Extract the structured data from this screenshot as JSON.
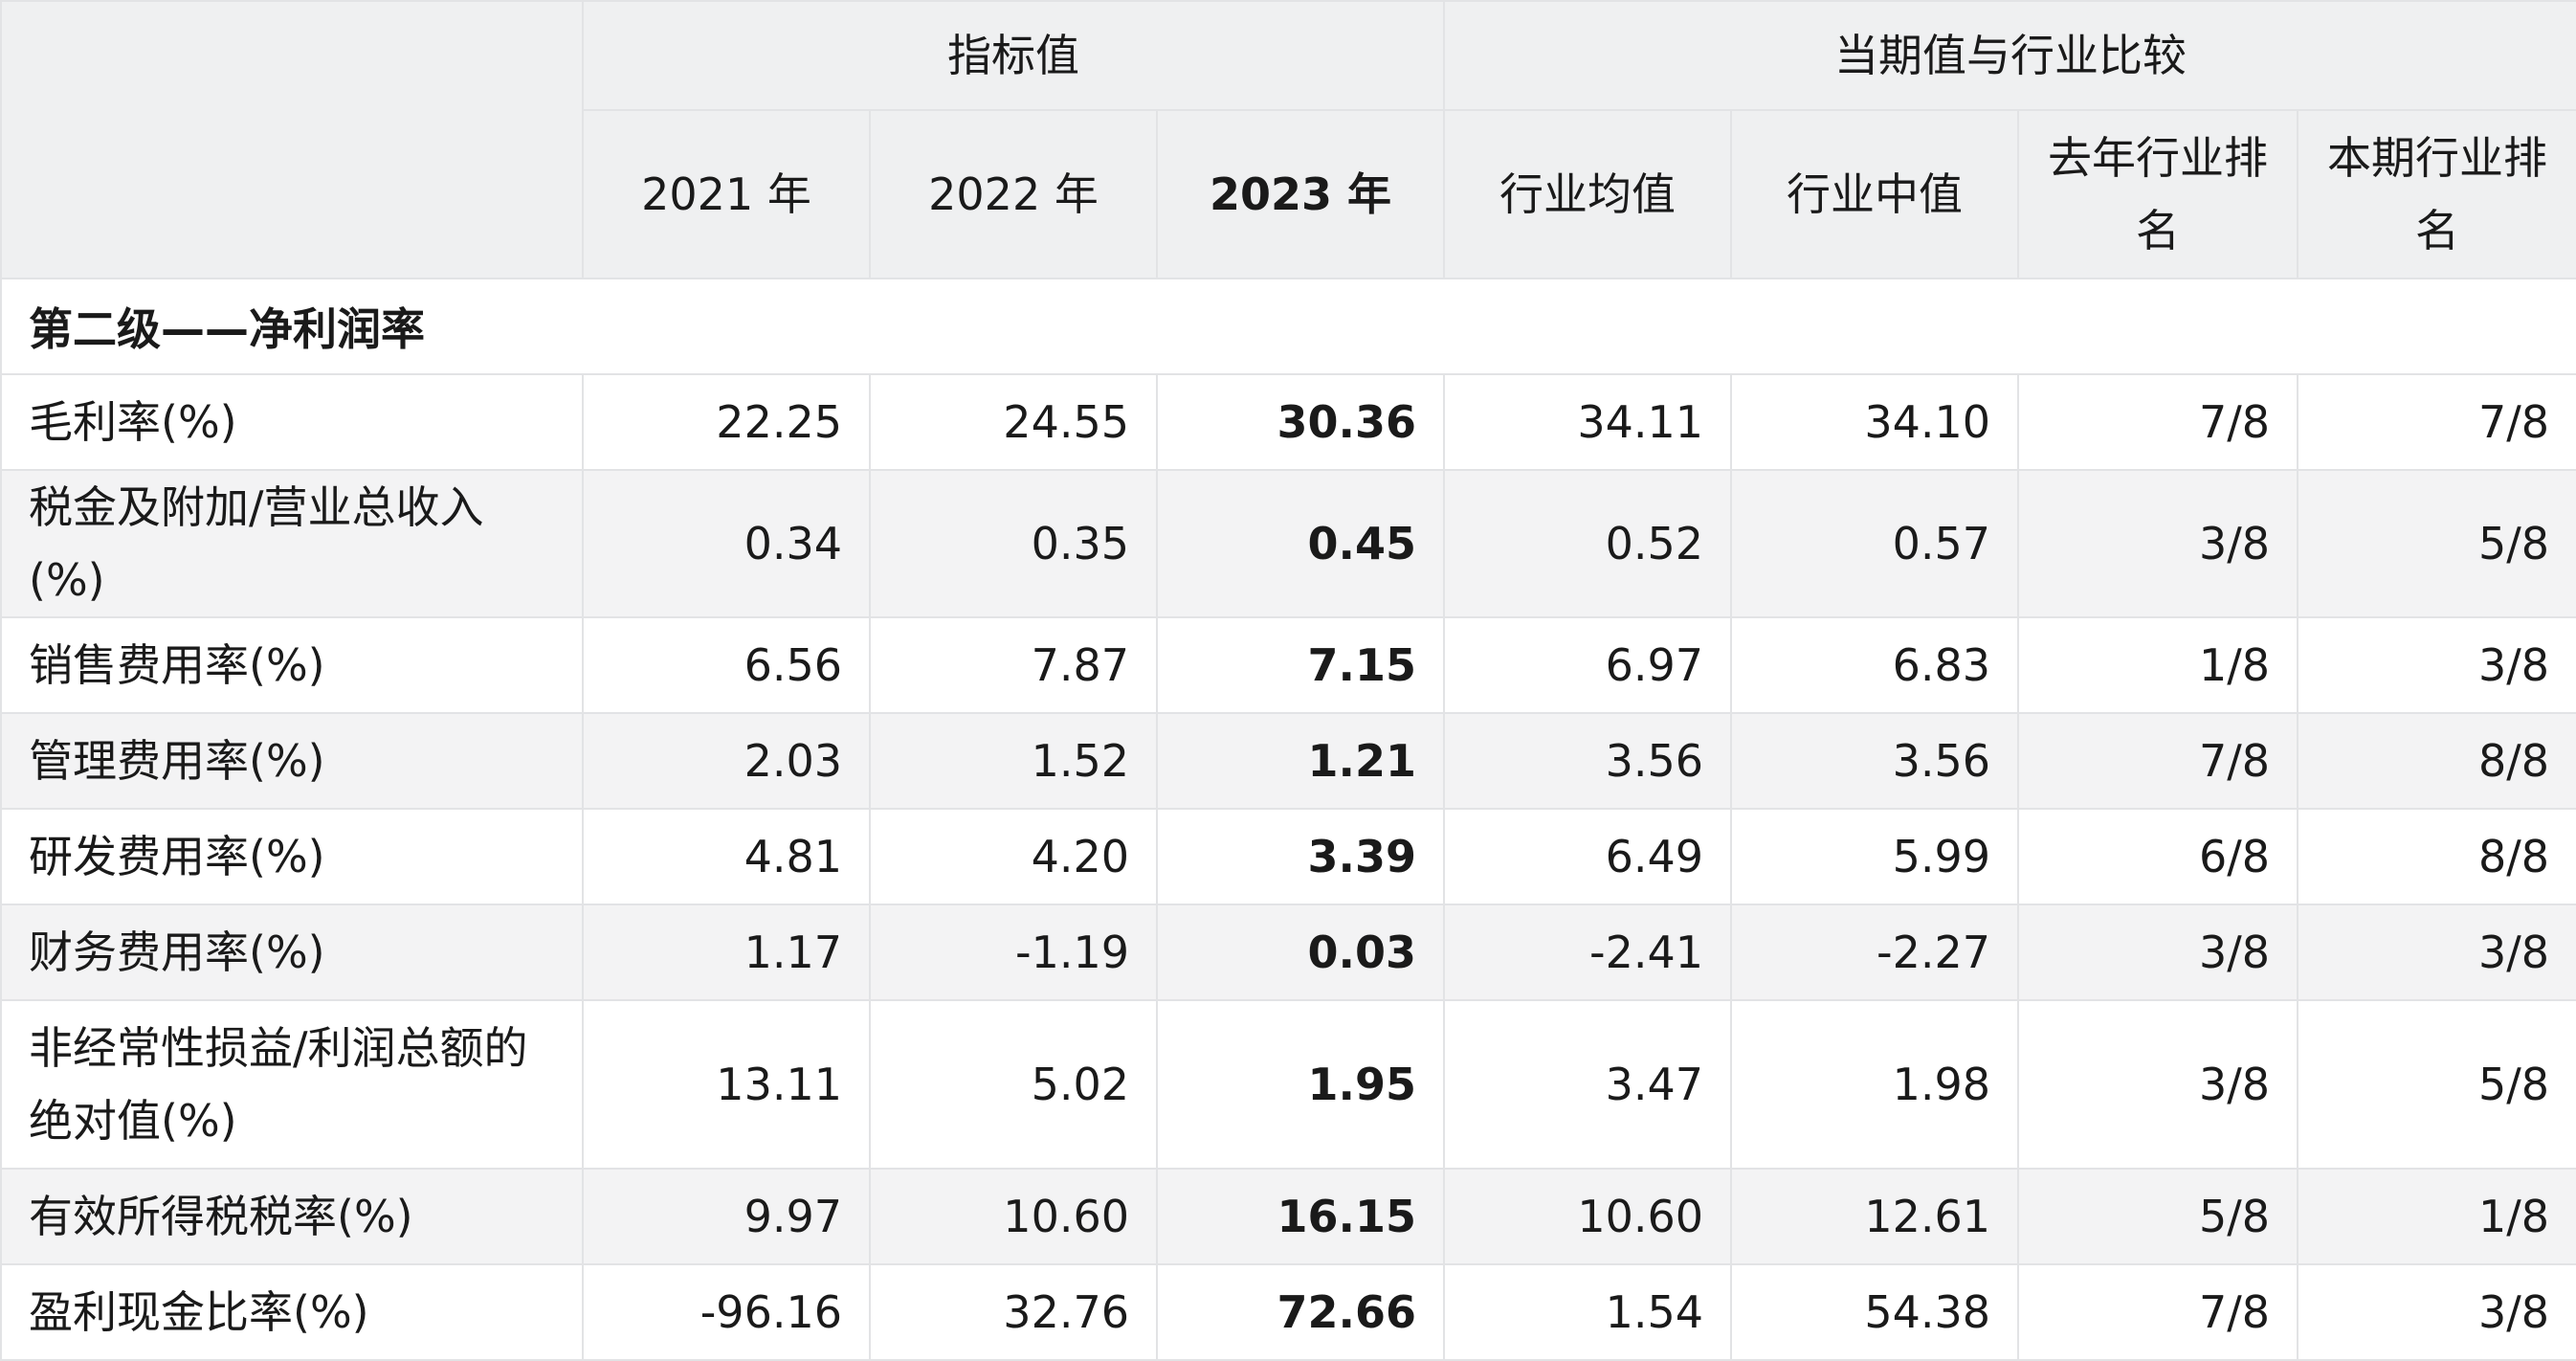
{
  "header": {
    "group_indicator": "指标值",
    "group_compare": "当期值与行业比较",
    "columns": [
      "2021 年",
      "2022 年",
      "2023 年",
      "行业均值",
      "行业中值",
      "去年行业排名",
      "本期行业排名"
    ]
  },
  "section_title": "第二级——净利润率",
  "rows": [
    {
      "label": "毛利率(%)",
      "values": [
        "22.25",
        "24.55",
        "30.36",
        "34.11",
        "34.10",
        "7/8",
        "7/8"
      ]
    },
    {
      "label": "税金及附加/营业总收入(%)",
      "values": [
        "0.34",
        "0.35",
        "0.45",
        "0.52",
        "0.57",
        "3/8",
        "5/8"
      ]
    },
    {
      "label": "销售费用率(%)",
      "values": [
        "6.56",
        "7.87",
        "7.15",
        "6.97",
        "6.83",
        "1/8",
        "3/8"
      ]
    },
    {
      "label": "管理费用率(%)",
      "values": [
        "2.03",
        "1.52",
        "1.21",
        "3.56",
        "3.56",
        "7/8",
        "8/8"
      ]
    },
    {
      "label": "研发费用率(%)",
      "values": [
        "4.81",
        "4.20",
        "3.39",
        "6.49",
        "5.99",
        "6/8",
        "8/8"
      ]
    },
    {
      "label": "财务费用率(%)",
      "values": [
        "1.17",
        "-1.19",
        "0.03",
        "-2.41",
        "-2.27",
        "3/8",
        "3/8"
      ]
    },
    {
      "label": "非经常性损益/利润总额的绝对值(%)",
      "values": [
        "13.11",
        "5.02",
        "1.95",
        "3.47",
        "1.98",
        "3/8",
        "5/8"
      ]
    },
    {
      "label": "有效所得税税率(%)",
      "values": [
        "9.97",
        "10.60",
        "16.15",
        "10.60",
        "12.61",
        "5/8",
        "1/8"
      ]
    },
    {
      "label": "盈利现金比率(%)",
      "values": [
        "-96.16",
        "32.76",
        "72.66",
        "1.54",
        "54.38",
        "7/8",
        "3/8"
      ]
    }
  ]
}
